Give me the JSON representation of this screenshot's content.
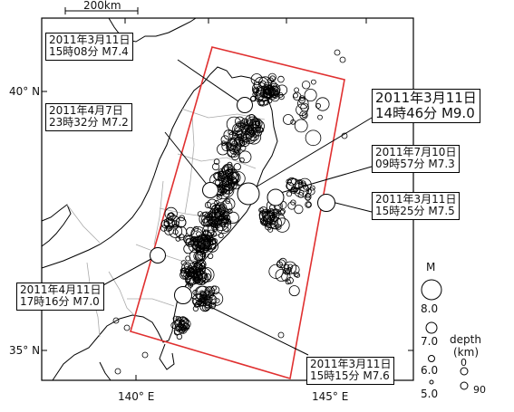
{
  "scale_bar": {
    "label": "200km"
  },
  "lat_labels": [
    "40° N",
    "35° N"
  ],
  "lon_labels": [
    "140° E",
    "145° E"
  ],
  "events": [
    {
      "date": "2011年3月11日",
      "time_mag": "15時08分 M7.4"
    },
    {
      "date": "2011年4月7日",
      "time_mag": "23時32分 M7.2"
    },
    {
      "date": "2011年3月11日",
      "time_mag": "14時46分 M9.0"
    },
    {
      "date": "2011年7月10日",
      "time_mag": "09時57分 M7.3"
    },
    {
      "date": "2011年3月11日",
      "time_mag": "15時25分 M7.5"
    },
    {
      "date": "2011年4月11日",
      "time_mag": "17時16分 M7.0"
    },
    {
      "date": "2011年3月11日",
      "time_mag": "15時15分 M7.6"
    }
  ],
  "legend": {
    "magnitude_title": "M",
    "magnitudes": [
      "8.0",
      "7.0",
      "6.0",
      "5.0"
    ],
    "depth_title": "depth",
    "depth_unit": "(km)",
    "depths": [
      "0",
      "90"
    ]
  },
  "colors": {
    "rectangle": "#e03030",
    "land": "#ffffff",
    "sea": "#ffffff",
    "circle": "#000000"
  }
}
